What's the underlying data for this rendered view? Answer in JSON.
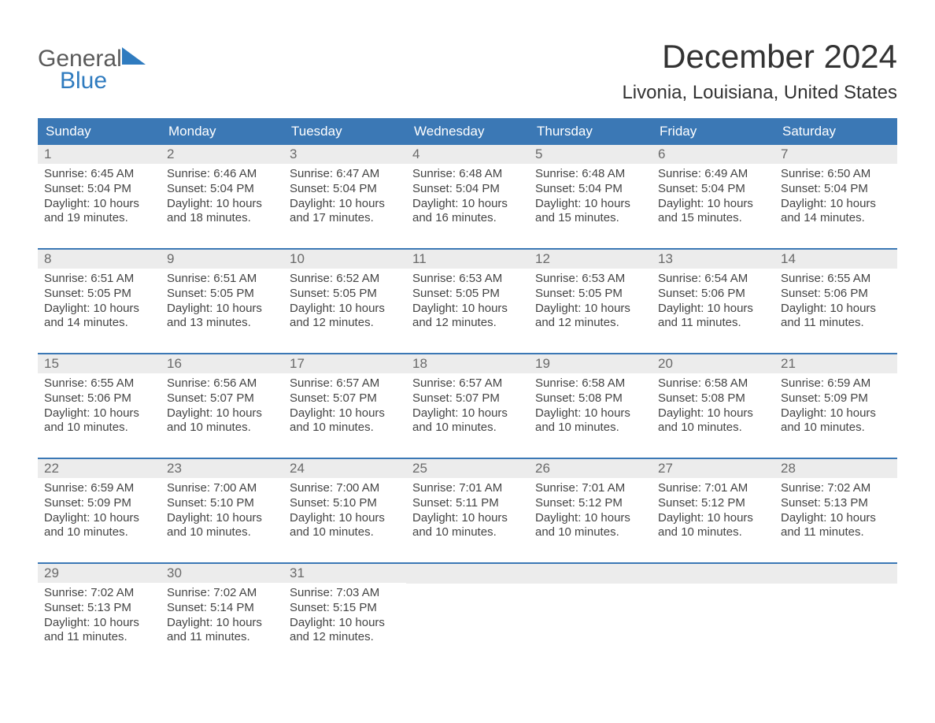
{
  "logo": {
    "line1": "General",
    "line2": "Blue"
  },
  "title": "December 2024",
  "location": "Livonia, Louisiana, United States",
  "colors": {
    "header_bg": "#3b78b5",
    "header_text": "#ffffff",
    "band_bg": "#ececec",
    "band_text": "#6a6a6a",
    "body_text": "#444444",
    "rule": "#3b78b5",
    "logo_gray": "#5a5a5a",
    "logo_blue": "#2f7bbf",
    "page_bg": "#ffffff"
  },
  "dow": [
    "Sunday",
    "Monday",
    "Tuesday",
    "Wednesday",
    "Thursday",
    "Friday",
    "Saturday"
  ],
  "layout": {
    "columns": 7,
    "weeks": 5,
    "cell_font_size_pt": 11,
    "title_font_size_pt": 32,
    "location_font_size_pt": 18
  },
  "weeks": [
    [
      {
        "n": "1",
        "sr": "Sunrise: 6:45 AM",
        "ss": "Sunset: 5:04 PM",
        "d1": "Daylight: 10 hours",
        "d2": "and 19 minutes."
      },
      {
        "n": "2",
        "sr": "Sunrise: 6:46 AM",
        "ss": "Sunset: 5:04 PM",
        "d1": "Daylight: 10 hours",
        "d2": "and 18 minutes."
      },
      {
        "n": "3",
        "sr": "Sunrise: 6:47 AM",
        "ss": "Sunset: 5:04 PM",
        "d1": "Daylight: 10 hours",
        "d2": "and 17 minutes."
      },
      {
        "n": "4",
        "sr": "Sunrise: 6:48 AM",
        "ss": "Sunset: 5:04 PM",
        "d1": "Daylight: 10 hours",
        "d2": "and 16 minutes."
      },
      {
        "n": "5",
        "sr": "Sunrise: 6:48 AM",
        "ss": "Sunset: 5:04 PM",
        "d1": "Daylight: 10 hours",
        "d2": "and 15 minutes."
      },
      {
        "n": "6",
        "sr": "Sunrise: 6:49 AM",
        "ss": "Sunset: 5:04 PM",
        "d1": "Daylight: 10 hours",
        "d2": "and 15 minutes."
      },
      {
        "n": "7",
        "sr": "Sunrise: 6:50 AM",
        "ss": "Sunset: 5:04 PM",
        "d1": "Daylight: 10 hours",
        "d2": "and 14 minutes."
      }
    ],
    [
      {
        "n": "8",
        "sr": "Sunrise: 6:51 AM",
        "ss": "Sunset: 5:05 PM",
        "d1": "Daylight: 10 hours",
        "d2": "and 14 minutes."
      },
      {
        "n": "9",
        "sr": "Sunrise: 6:51 AM",
        "ss": "Sunset: 5:05 PM",
        "d1": "Daylight: 10 hours",
        "d2": "and 13 minutes."
      },
      {
        "n": "10",
        "sr": "Sunrise: 6:52 AM",
        "ss": "Sunset: 5:05 PM",
        "d1": "Daylight: 10 hours",
        "d2": "and 12 minutes."
      },
      {
        "n": "11",
        "sr": "Sunrise: 6:53 AM",
        "ss": "Sunset: 5:05 PM",
        "d1": "Daylight: 10 hours",
        "d2": "and 12 minutes."
      },
      {
        "n": "12",
        "sr": "Sunrise: 6:53 AM",
        "ss": "Sunset: 5:05 PM",
        "d1": "Daylight: 10 hours",
        "d2": "and 12 minutes."
      },
      {
        "n": "13",
        "sr": "Sunrise: 6:54 AM",
        "ss": "Sunset: 5:06 PM",
        "d1": "Daylight: 10 hours",
        "d2": "and 11 minutes."
      },
      {
        "n": "14",
        "sr": "Sunrise: 6:55 AM",
        "ss": "Sunset: 5:06 PM",
        "d1": "Daylight: 10 hours",
        "d2": "and 11 minutes."
      }
    ],
    [
      {
        "n": "15",
        "sr": "Sunrise: 6:55 AM",
        "ss": "Sunset: 5:06 PM",
        "d1": "Daylight: 10 hours",
        "d2": "and 10 minutes."
      },
      {
        "n": "16",
        "sr": "Sunrise: 6:56 AM",
        "ss": "Sunset: 5:07 PM",
        "d1": "Daylight: 10 hours",
        "d2": "and 10 minutes."
      },
      {
        "n": "17",
        "sr": "Sunrise: 6:57 AM",
        "ss": "Sunset: 5:07 PM",
        "d1": "Daylight: 10 hours",
        "d2": "and 10 minutes."
      },
      {
        "n": "18",
        "sr": "Sunrise: 6:57 AM",
        "ss": "Sunset: 5:07 PM",
        "d1": "Daylight: 10 hours",
        "d2": "and 10 minutes."
      },
      {
        "n": "19",
        "sr": "Sunrise: 6:58 AM",
        "ss": "Sunset: 5:08 PM",
        "d1": "Daylight: 10 hours",
        "d2": "and 10 minutes."
      },
      {
        "n": "20",
        "sr": "Sunrise: 6:58 AM",
        "ss": "Sunset: 5:08 PM",
        "d1": "Daylight: 10 hours",
        "d2": "and 10 minutes."
      },
      {
        "n": "21",
        "sr": "Sunrise: 6:59 AM",
        "ss": "Sunset: 5:09 PM",
        "d1": "Daylight: 10 hours",
        "d2": "and 10 minutes."
      }
    ],
    [
      {
        "n": "22",
        "sr": "Sunrise: 6:59 AM",
        "ss": "Sunset: 5:09 PM",
        "d1": "Daylight: 10 hours",
        "d2": "and 10 minutes."
      },
      {
        "n": "23",
        "sr": "Sunrise: 7:00 AM",
        "ss": "Sunset: 5:10 PM",
        "d1": "Daylight: 10 hours",
        "d2": "and 10 minutes."
      },
      {
        "n": "24",
        "sr": "Sunrise: 7:00 AM",
        "ss": "Sunset: 5:10 PM",
        "d1": "Daylight: 10 hours",
        "d2": "and 10 minutes."
      },
      {
        "n": "25",
        "sr": "Sunrise: 7:01 AM",
        "ss": "Sunset: 5:11 PM",
        "d1": "Daylight: 10 hours",
        "d2": "and 10 minutes."
      },
      {
        "n": "26",
        "sr": "Sunrise: 7:01 AM",
        "ss": "Sunset: 5:12 PM",
        "d1": "Daylight: 10 hours",
        "d2": "and 10 minutes."
      },
      {
        "n": "27",
        "sr": "Sunrise: 7:01 AM",
        "ss": "Sunset: 5:12 PM",
        "d1": "Daylight: 10 hours",
        "d2": "and 10 minutes."
      },
      {
        "n": "28",
        "sr": "Sunrise: 7:02 AM",
        "ss": "Sunset: 5:13 PM",
        "d1": "Daylight: 10 hours",
        "d2": "and 11 minutes."
      }
    ],
    [
      {
        "n": "29",
        "sr": "Sunrise: 7:02 AM",
        "ss": "Sunset: 5:13 PM",
        "d1": "Daylight: 10 hours",
        "d2": "and 11 minutes."
      },
      {
        "n": "30",
        "sr": "Sunrise: 7:02 AM",
        "ss": "Sunset: 5:14 PM",
        "d1": "Daylight: 10 hours",
        "d2": "and 11 minutes."
      },
      {
        "n": "31",
        "sr": "Sunrise: 7:03 AM",
        "ss": "Sunset: 5:15 PM",
        "d1": "Daylight: 10 hours",
        "d2": "and 12 minutes."
      },
      null,
      null,
      null,
      null
    ]
  ]
}
